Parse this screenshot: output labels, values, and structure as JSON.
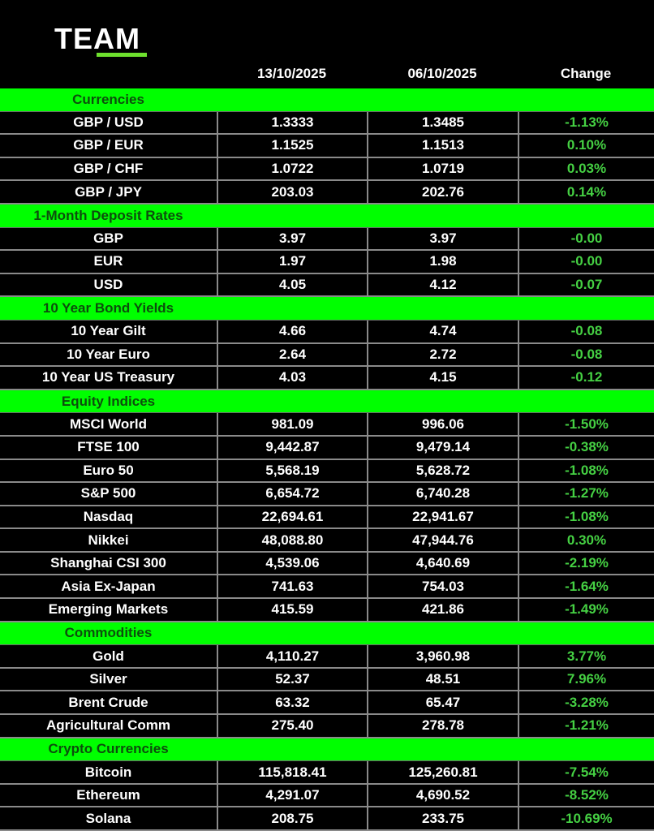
{
  "logo": {
    "text": "TEAM"
  },
  "header": {
    "col1": "13/10/2025",
    "col2": "06/10/2025",
    "col3": "Change"
  },
  "colors": {
    "section_bg": "#00ff00",
    "section_text": "#0d4d0d",
    "change_text": "#45d043",
    "background": "#000000"
  },
  "sections": [
    {
      "title": "Currencies",
      "rows": [
        {
          "label": "GBP / USD",
          "current": "1.3333",
          "previous": "1.3485",
          "change": "-1.13%"
        },
        {
          "label": "GBP / EUR",
          "current": "1.1525",
          "previous": "1.1513",
          "change": "0.10%"
        },
        {
          "label": "GBP / CHF",
          "current": "1.0722",
          "previous": "1.0719",
          "change": "0.03%"
        },
        {
          "label": "GBP / JPY",
          "current": "203.03",
          "previous": "202.76",
          "change": "0.14%"
        }
      ]
    },
    {
      "title": "1-Month Deposit Rates",
      "rows": [
        {
          "label": "GBP",
          "current": "3.97",
          "previous": "3.97",
          "change": "-0.00"
        },
        {
          "label": "EUR",
          "current": "1.97",
          "previous": "1.98",
          "change": "-0.00"
        },
        {
          "label": "USD",
          "current": "4.05",
          "previous": "4.12",
          "change": "-0.07"
        }
      ]
    },
    {
      "title": "10 Year Bond Yields",
      "rows": [
        {
          "label": "10 Year Gilt",
          "current": "4.66",
          "previous": "4.74",
          "change": "-0.08"
        },
        {
          "label": "10 Year Euro",
          "current": "2.64",
          "previous": "2.72",
          "change": "-0.08"
        },
        {
          "label": "10 Year US Treasury",
          "current": "4.03",
          "previous": "4.15",
          "change": "-0.12"
        }
      ]
    },
    {
      "title": "Equity Indices",
      "rows": [
        {
          "label": "MSCI World",
          "current": "981.09",
          "previous": "996.06",
          "change": "-1.50%"
        },
        {
          "label": "FTSE 100",
          "current": "9,442.87",
          "previous": "9,479.14",
          "change": "-0.38%"
        },
        {
          "label": "Euro 50",
          "current": "5,568.19",
          "previous": "5,628.72",
          "change": "-1.08%"
        },
        {
          "label": "S&P 500",
          "current": "6,654.72",
          "previous": "6,740.28",
          "change": "-1.27%"
        },
        {
          "label": "Nasdaq",
          "current": "22,694.61",
          "previous": "22,941.67",
          "change": "-1.08%"
        },
        {
          "label": "Nikkei",
          "current": "48,088.80",
          "previous": "47,944.76",
          "change": "0.30%"
        },
        {
          "label": "Shanghai CSI 300",
          "current": "4,539.06",
          "previous": "4,640.69",
          "change": "-2.19%"
        },
        {
          "label": "Asia Ex-Japan",
          "current": "741.63",
          "previous": "754.03",
          "change": "-1.64%"
        },
        {
          "label": "Emerging Markets",
          "current": "415.59",
          "previous": "421.86",
          "change": "-1.49%"
        }
      ]
    },
    {
      "title": "Commodities",
      "rows": [
        {
          "label": "Gold",
          "current": "4,110.27",
          "previous": "3,960.98",
          "change": "3.77%"
        },
        {
          "label": "Silver",
          "current": "52.37",
          "previous": "48.51",
          "change": "7.96%"
        },
        {
          "label": "Brent Crude",
          "current": "63.32",
          "previous": "65.47",
          "change": "-3.28%"
        },
        {
          "label": "Agricultural Comm",
          "current": "275.40",
          "previous": "278.78",
          "change": "-1.21%"
        }
      ]
    },
    {
      "title": "Crypto Currencies",
      "rows": [
        {
          "label": "Bitcoin",
          "current": "115,818.41",
          "previous": "125,260.81",
          "change": "-7.54%"
        },
        {
          "label": "Ethereum",
          "current": "4,291.07",
          "previous": "4,690.52",
          "change": "-8.52%"
        },
        {
          "label": "Solana",
          "current": "208.75",
          "previous": "233.75",
          "change": "-10.69%"
        }
      ]
    }
  ]
}
